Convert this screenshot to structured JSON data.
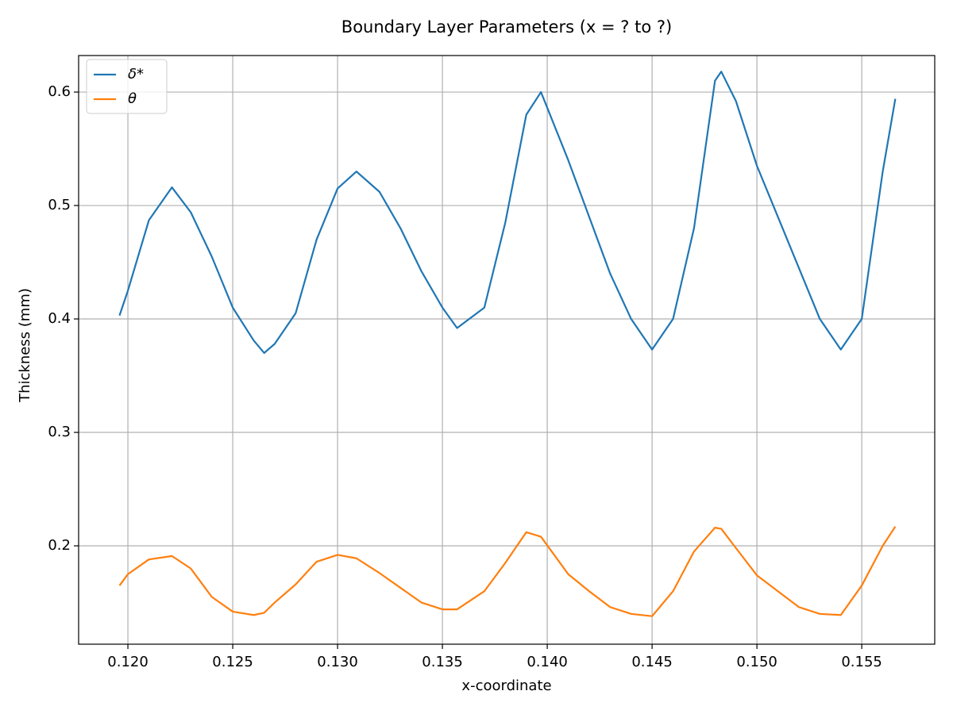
{
  "chart_data": {
    "type": "line",
    "title": "Boundary Layer Parameters (x = ? to ?)",
    "x_label": "x-coordinate",
    "y_label": "Thickness (mm)",
    "x": [
      0.1196,
      0.12,
      0.121,
      0.1221,
      0.123,
      0.124,
      0.125,
      0.126,
      0.1265,
      0.127,
      0.128,
      0.129,
      0.13,
      0.1309,
      0.132,
      0.133,
      0.134,
      0.135,
      0.1357,
      0.137,
      0.138,
      0.139,
      0.1397,
      0.141,
      0.142,
      0.143,
      0.144,
      0.145,
      0.146,
      0.147,
      0.148,
      0.1483,
      0.149,
      0.15,
      0.151,
      0.152,
      0.153,
      0.154,
      0.155,
      0.156,
      0.1566
    ],
    "series": [
      {
        "name": "δ*",
        "color": "#1f77b4",
        "values": [
          0.403,
          0.425,
          0.487,
          0.516,
          0.494,
          0.455,
          0.41,
          0.381,
          0.37,
          0.378,
          0.405,
          0.47,
          0.515,
          0.53,
          0.512,
          0.48,
          0.442,
          0.41,
          0.392,
          0.41,
          0.485,
          0.58,
          0.6,
          0.54,
          0.49,
          0.44,
          0.4,
          0.373,
          0.4,
          0.48,
          0.61,
          0.618,
          0.592,
          0.535,
          0.49,
          0.445,
          0.4,
          0.373,
          0.4,
          0.53,
          0.594
        ]
      },
      {
        "name": "θ",
        "color": "#ff7f0e",
        "values": [
          0.165,
          0.175,
          0.188,
          0.191,
          0.18,
          0.155,
          0.142,
          0.139,
          0.141,
          0.15,
          0.166,
          0.186,
          0.192,
          0.189,
          0.176,
          0.163,
          0.15,
          0.144,
          0.144,
          0.16,
          0.185,
          0.212,
          0.208,
          0.175,
          0.16,
          0.146,
          0.14,
          0.138,
          0.16,
          0.195,
          0.216,
          0.215,
          0.198,
          0.174,
          0.16,
          0.146,
          0.14,
          0.139,
          0.165,
          0.2,
          0.217
        ]
      }
    ],
    "xlim": [
      0.11765,
      0.15848
    ],
    "xticks": [
      {
        "value": 0.12,
        "label": "0.120"
      },
      {
        "value": 0.125,
        "label": "0.125"
      },
      {
        "value": 0.13,
        "label": "0.130"
      },
      {
        "value": 0.135,
        "label": "0.135"
      },
      {
        "value": 0.14,
        "label": "0.140"
      },
      {
        "value": 0.145,
        "label": "0.145"
      },
      {
        "value": 0.15,
        "label": "0.150"
      },
      {
        "value": 0.155,
        "label": "0.155"
      }
    ],
    "ylim": [
      0.1133,
      0.6322
    ],
    "yticks": [
      0.2,
      0.3,
      0.4,
      0.5,
      0.6
    ],
    "grid": true,
    "legend": "upper left"
  }
}
